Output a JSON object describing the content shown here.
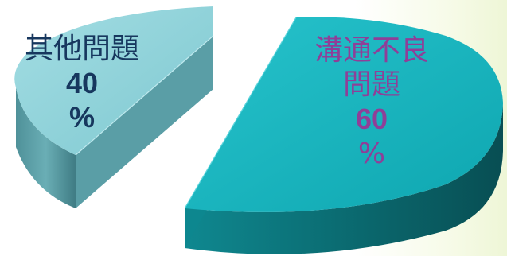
{
  "chart_data": {
    "type": "pie",
    "variant": "3d-exploded",
    "slices": [
      {
        "label": "其他問題",
        "value": 40,
        "value_label": "40",
        "unit": "%",
        "color_top": "#8fd4dc",
        "color_side": "#5ea2aa",
        "label_color": "#17375e"
      },
      {
        "label": "溝通不良問題",
        "label_lines": [
          "溝通不良",
          "問題"
        ],
        "value": 60,
        "value_label": "60",
        "unit": "%",
        "color_top": "#14b3bd",
        "color_side": "#0b6f75",
        "label_color": "#8f3f98"
      }
    ],
    "legend": "none",
    "grid": false
  }
}
